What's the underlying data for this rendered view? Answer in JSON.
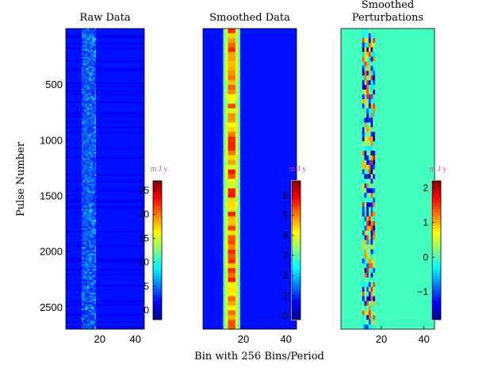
{
  "colors": {
    "colormap": [
      "#00008f",
      "#0000ff",
      "#0080ff",
      "#00ffff",
      "#80ff80",
      "#ffff00",
      "#ff8000",
      "#ff0000",
      "#800000"
    ],
    "colorbar_unit": "#d04a9c"
  },
  "figure": {
    "ylabel": "Pulse Number",
    "xlabel": "Bin with 256 Bins/Period"
  },
  "chart_data": [
    {
      "type": "heatmap",
      "title": "Raw Data",
      "title_line2": "",
      "xlim": [
        1,
        45
      ],
      "ylim": [
        0,
        2700
      ],
      "y_reversed": true,
      "x_ticks": [
        "20",
        "40"
      ],
      "y_ticks": [
        "500",
        "1000",
        "1500",
        "2000",
        "2500"
      ],
      "y_tick_values": [
        500,
        1000,
        1500,
        2000,
        2500
      ],
      "background_level": 0.14,
      "pulse": {
        "center_bin": 14,
        "width_bins": 4,
        "peak_level": 0.35,
        "texture": "noisy"
      },
      "colorbar": {
        "unit": "mJy",
        "range": [
          -2,
          27
        ],
        "ticks": [
          0,
          5,
          10,
          15,
          20,
          25
        ],
        "tick_labels": [
          "0",
          "5",
          "10",
          "15",
          "20",
          "25"
        ]
      }
    },
    {
      "type": "heatmap",
      "title": "Smoothed Data",
      "title_line2": "",
      "xlim": [
        1,
        45
      ],
      "ylim": [
        0,
        2700
      ],
      "y_reversed": true,
      "x_ticks": [
        "20",
        "40"
      ],
      "y_ticks": [],
      "y_tick_values": [],
      "background_level": 0.14,
      "pulse": {
        "center_bin": 14.5,
        "width_bins": 5,
        "peak_level": 0.72,
        "texture": "smooth"
      },
      "colorbar": {
        "unit": "mJy",
        "range": [
          -0.2,
          6.7
        ],
        "ticks": [
          0,
          1,
          2,
          3,
          4,
          5,
          6
        ],
        "tick_labels": [
          "0",
          "1",
          "2",
          "3",
          "4",
          "5",
          "6"
        ]
      }
    },
    {
      "type": "heatmap",
      "title": "Smoothed",
      "title_line2": "Perturbations",
      "xlim": [
        1,
        45
      ],
      "ylim": [
        0,
        2700
      ],
      "y_reversed": true,
      "x_ticks": [
        "20",
        "40"
      ],
      "y_ticks": [],
      "y_tick_values": [],
      "background_level": 0.44,
      "pulse": {
        "center_bin": 14,
        "width_bins": 6,
        "peak_level": 0.44,
        "texture": "signed"
      },
      "colorbar": {
        "unit": "mJy",
        "range": [
          -1.8,
          2.2
        ],
        "ticks": [
          -1,
          0,
          1,
          2
        ],
        "tick_labels": [
          "−1",
          "0",
          "1",
          "2"
        ]
      }
    }
  ]
}
